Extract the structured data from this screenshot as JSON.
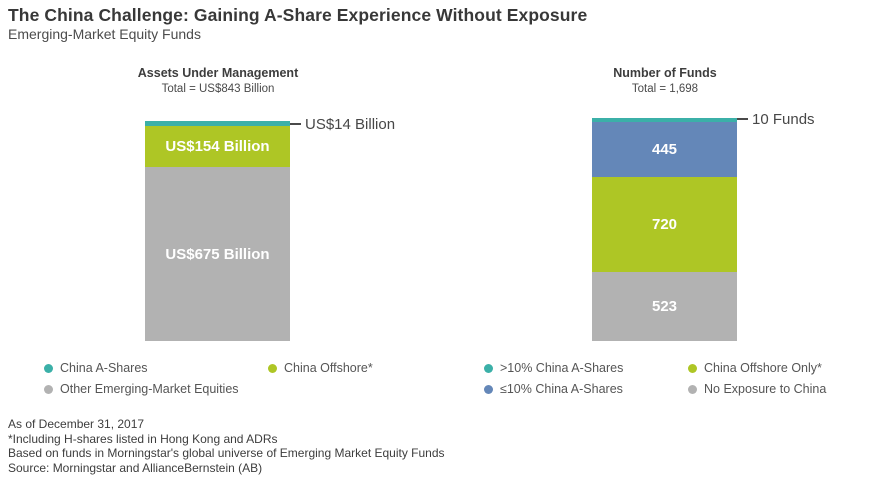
{
  "page": {
    "title": "The China Challenge: Gaining A-Share Experience Without Exposure",
    "subtitle": "Emerging-Market Equity Funds"
  },
  "colors": {
    "teal": "#3bb0a8",
    "green": "#aec625",
    "gray": "#b2b2b2",
    "blue": "#6487b8",
    "callout_line": "#4a4a4a",
    "text_dark": "#3d3d3d"
  },
  "chart_data": [
    {
      "type": "bar",
      "stacked": true,
      "title": "Assets Under Management",
      "total_label": "Total = US$843 Billion",
      "total": 843,
      "unit": "US$ Billions",
      "series": [
        {
          "name": "China A-Shares",
          "value": 14,
          "label": "US$14 Billion",
          "color": "#3bb0a8",
          "label_position": "callout-right"
        },
        {
          "name": "China Offshore",
          "value": 154,
          "label": "US$154 Billion",
          "color": "#aec625",
          "label_position": "inside"
        },
        {
          "name": "Other Emerging-Market Equities",
          "value": 675,
          "label": "US$675 Billion",
          "color": "#b2b2b2",
          "label_position": "inside"
        }
      ],
      "legend": [
        {
          "label": "China A-Shares",
          "color": "#3bb0a8"
        },
        {
          "label": "China Offshore*",
          "color": "#aec625"
        },
        {
          "label": "Other Emerging-Market Equities",
          "color": "#b2b2b2"
        }
      ],
      "legend_position": "bottom"
    },
    {
      "type": "bar",
      "stacked": true,
      "title": "Number of Funds",
      "total_label": "Total = 1,698",
      "total": 1698,
      "unit": "funds",
      "series": [
        {
          "name": ">10% China A-Shares",
          "value": 10,
          "label": "10 Funds",
          "color": "#3bb0a8",
          "label_position": "callout-right"
        },
        {
          "name": "≤10% China A-Shares",
          "value": 445,
          "label": "445",
          "color": "#6487b8",
          "label_position": "inside"
        },
        {
          "name": "China Offshore Only",
          "value": 720,
          "label": "720",
          "color": "#aec625",
          "label_position": "inside"
        },
        {
          "name": "No Exposure to China",
          "value": 523,
          "label": "523",
          "color": "#b2b2b2",
          "label_position": "inside"
        }
      ],
      "legend": [
        {
          "label": ">10% China A-Shares",
          "color": "#3bb0a8"
        },
        {
          "label": "China Offshore Only*",
          "color": "#aec625"
        },
        {
          "label": "≤10% China A-Shares",
          "color": "#6487b8"
        },
        {
          "label": "No Exposure to China",
          "color": "#b2b2b2"
        }
      ],
      "legend_position": "bottom"
    }
  ],
  "footnotes": [
    "As of December 31, 2017",
    "*Including H-shares listed in Hong Kong and ADRs",
    "Based on funds in Morningstar's global universe of Emerging Market Equity Funds",
    "Source: Morningstar and AllianceBernstein (AB)"
  ]
}
